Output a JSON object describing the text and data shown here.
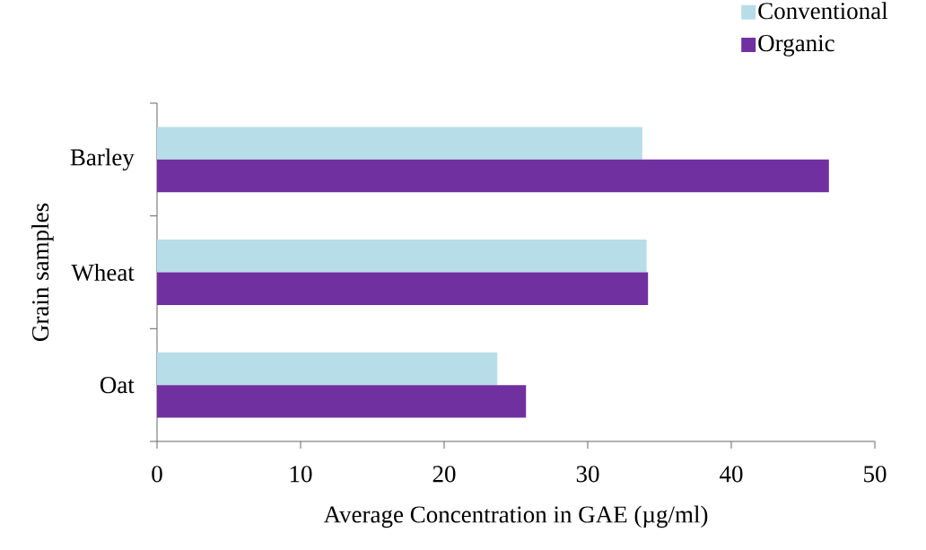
{
  "chart_data": {
    "type": "bar",
    "orientation": "horizontal",
    "xlabel": "Average Concentration in GAE (µg/ml)",
    "ylabel": "Grain samples",
    "categories": [
      "Barley",
      "Wheat",
      "Oat"
    ],
    "series": [
      {
        "name": "Conventional",
        "color": "#b7dde8",
        "values": [
          33.8,
          34.1,
          23.7
        ]
      },
      {
        "name": "Organic",
        "color": "#7030a0",
        "values": [
          46.8,
          34.2,
          25.7
        ]
      }
    ],
    "xlim": [
      0,
      50
    ],
    "xticks": [
      0,
      10,
      20,
      30,
      40,
      50
    ],
    "legend": "top right"
  }
}
